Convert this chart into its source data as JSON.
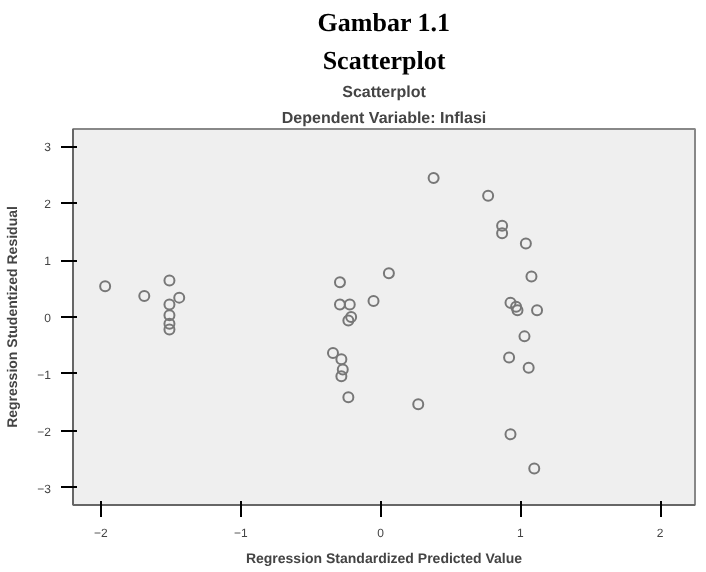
{
  "chart_data": {
    "type": "scatter",
    "title": "Scatterplot",
    "subtitle": "Dependent Variable: Inflasi",
    "annotations": [
      "Gambar 1.1",
      "Scatterplot"
    ],
    "xlabel": "Regression Standardized Predicted Value",
    "ylabel": "Regression Studentized Residual",
    "x": [
      -1.97,
      -1.69,
      -1.51,
      -1.51,
      -1.44,
      -1.51,
      -1.51,
      -1.51,
      -0.29,
      -0.29,
      -0.22,
      -0.21,
      -0.23,
      -0.34,
      -0.28,
      -0.27,
      -0.28,
      -0.23,
      0.38,
      0.77,
      0.87,
      0.87,
      1.04,
      1.08,
      0.06,
      -0.05,
      0.93,
      0.97,
      0.98,
      1.12,
      1.03,
      0.92,
      1.06,
      0.27,
      0.93,
      1.1
    ],
    "series": [
      {
        "color": "#777777",
        "values": [
          0.54,
          0.37,
          0.64,
          0.22,
          0.34,
          0.03,
          -0.12,
          -0.22,
          0.61,
          0.22,
          0.22,
          0.0,
          -0.06,
          -0.63,
          -0.74,
          -0.92,
          -1.04,
          -1.41,
          2.44,
          2.13,
          1.6,
          1.47,
          1.29,
          0.71,
          0.77,
          0.28,
          0.25,
          0.18,
          0.12,
          0.12,
          -0.34,
          -0.71,
          -0.89,
          -1.53,
          -2.06,
          -2.66
        ]
      }
    ],
    "xlim": [
      -2.2,
      2.25
    ],
    "ylim": [
      -3.3,
      3.3
    ],
    "xticks": [
      -2,
      -1,
      0,
      1,
      2
    ],
    "yticks": [
      -3,
      -2,
      -1,
      0,
      1,
      2,
      3
    ],
    "grid": false,
    "marker": "circle"
  }
}
